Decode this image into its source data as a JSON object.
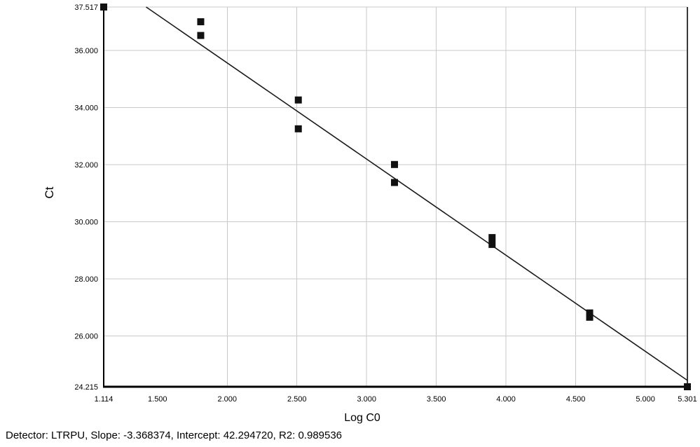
{
  "footer": {
    "summary": "Detector: LTRPU, Slope: -3.368374, Intercept: 42.294720, R2: 0.989536",
    "detector": "LTRPU",
    "slope": "-3.368374",
    "intercept": "42.294720",
    "r2": "0.989536"
  },
  "chart_data": {
    "type": "scatter",
    "title": "",
    "xlabel": "Log C0",
    "ylabel": "Ct",
    "xlim": [
      1.114,
      5.301
    ],
    "ylim": [
      24.215,
      37.517
    ],
    "x_ticks": [
      {
        "v": 1.114,
        "label": "1.114"
      },
      {
        "v": 1.5,
        "label": "1.500"
      },
      {
        "v": 2.0,
        "label": "2.000"
      },
      {
        "v": 2.5,
        "label": "2.500"
      },
      {
        "v": 3.0,
        "label": "3.000"
      },
      {
        "v": 3.5,
        "label": "3.500"
      },
      {
        "v": 4.0,
        "label": "4.000"
      },
      {
        "v": 4.5,
        "label": "4.500"
      },
      {
        "v": 5.0,
        "label": "5.000"
      },
      {
        "v": 5.301,
        "label": "5.301"
      }
    ],
    "y_ticks": [
      {
        "v": 37.517,
        "label": "37.517"
      },
      {
        "v": 36.0,
        "label": "36.000"
      },
      {
        "v": 34.0,
        "label": "34.000"
      },
      {
        "v": 32.0,
        "label": "32.000"
      },
      {
        "v": 30.0,
        "label": "30.000"
      },
      {
        "v": 28.0,
        "label": "28.000"
      },
      {
        "v": 26.0,
        "label": "26.000"
      },
      {
        "v": 24.215,
        "label": "24.215"
      }
    ],
    "x_gridlines": [
      2.0,
      2.5,
      3.0,
      3.5,
      4.0,
      4.5,
      5.0
    ],
    "y_gridlines": [
      37.517,
      36.0,
      34.0,
      32.0,
      30.0,
      28.0,
      26.0
    ],
    "grid_on": true,
    "legend": "none",
    "points": [
      [
        1.114,
        37.517
      ],
      [
        1.81,
        37.0
      ],
      [
        1.81,
        36.52
      ],
      [
        2.51,
        34.26
      ],
      [
        2.51,
        33.25
      ],
      [
        3.2,
        32.0
      ],
      [
        3.2,
        31.37
      ],
      [
        3.9,
        29.44
      ],
      [
        3.9,
        29.2
      ],
      [
        4.6,
        26.8
      ],
      [
        4.6,
        26.65
      ],
      [
        5.301,
        24.215
      ]
    ],
    "fit_line": {
      "slope": -3.368374,
      "intercept": 42.29472
    },
    "colors": {
      "point": "#111111",
      "line": "#1a1a1a",
      "grid": "#c9c9c9",
      "axis": "#000000",
      "right_border": "#3a3a3a",
      "background": "#ffffff"
    }
  }
}
